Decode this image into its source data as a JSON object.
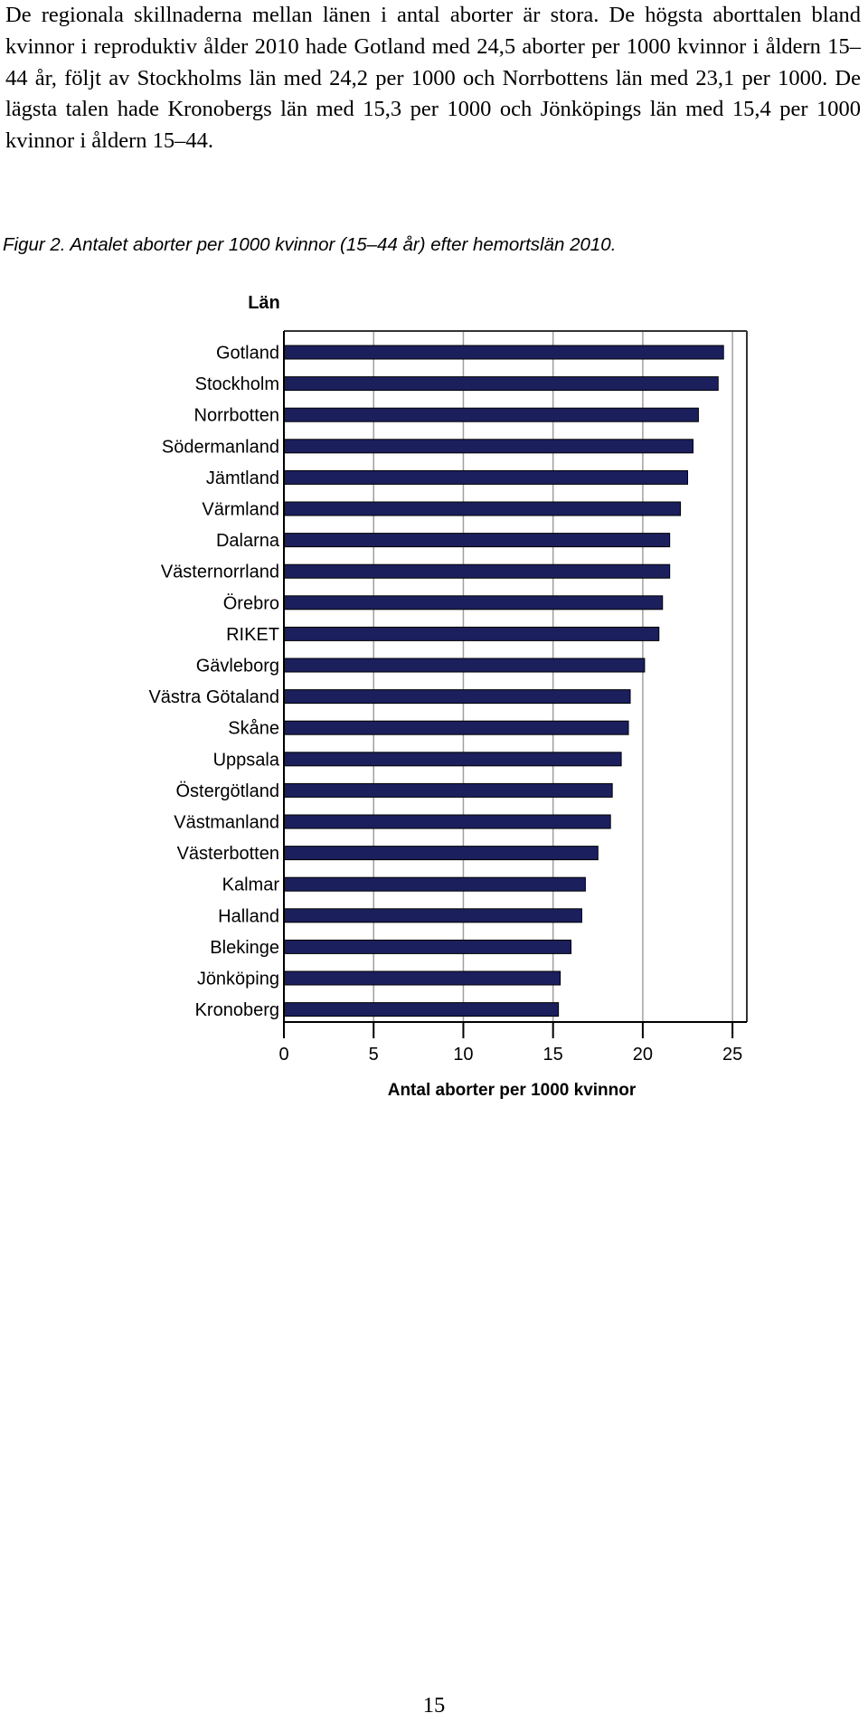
{
  "document": {
    "intro_text": "De regionala skillnaderna mellan länen i antal aborter är stora. De högsta aborttalen bland kvinnor i reproduktiv ålder 2010 hade Gotland med 24,5 aborter per 1000 kvinnor i åldern 15–44 år, följt av Stockholms län med 24,2 per 1000 och Norrbottens län med 23,1 per 1000. De lägsta talen hade Kronobergs län med 15,3 per 1000 och Jönköpings län med 15,4 per 1000 kvinnor i åldern 15–44.",
    "figure_caption": "Figur 2. Antalet aborter per 1000 kvinnor (15–44 år) efter hemortslän 2010.",
    "page_number": "15"
  },
  "chart_data": {
    "type": "bar",
    "orientation": "horizontal",
    "category_axis_title": "Län",
    "xlabel": "Antal aborter per 1000 kvinnor",
    "categories": [
      "Gotland",
      "Stockholm",
      "Norrbotten",
      "Södermanland",
      "Jämtland",
      "Värmland",
      "Dalarna",
      "Västernorrland",
      "Örebro",
      "RIKET",
      "Gävleborg",
      "Västra Götaland",
      "Skåne",
      "Uppsala",
      "Östergötland",
      "Västmanland",
      "Västerbotten",
      "Kalmar",
      "Halland",
      "Blekinge",
      "Jönköping",
      "Kronoberg"
    ],
    "values": [
      24.5,
      24.2,
      23.1,
      22.8,
      22.5,
      22.1,
      21.5,
      21.5,
      21.1,
      20.9,
      20.1,
      19.3,
      19.2,
      18.8,
      18.3,
      18.2,
      17.5,
      16.8,
      16.6,
      16.0,
      15.4,
      15.3
    ],
    "xticks": [
      0,
      5,
      10,
      15,
      20,
      25
    ],
    "xlim": [
      0,
      25.8
    ],
    "grid": "vertical",
    "bar_color": "#1b1f5c",
    "grid_color": "#a0a0a0"
  }
}
